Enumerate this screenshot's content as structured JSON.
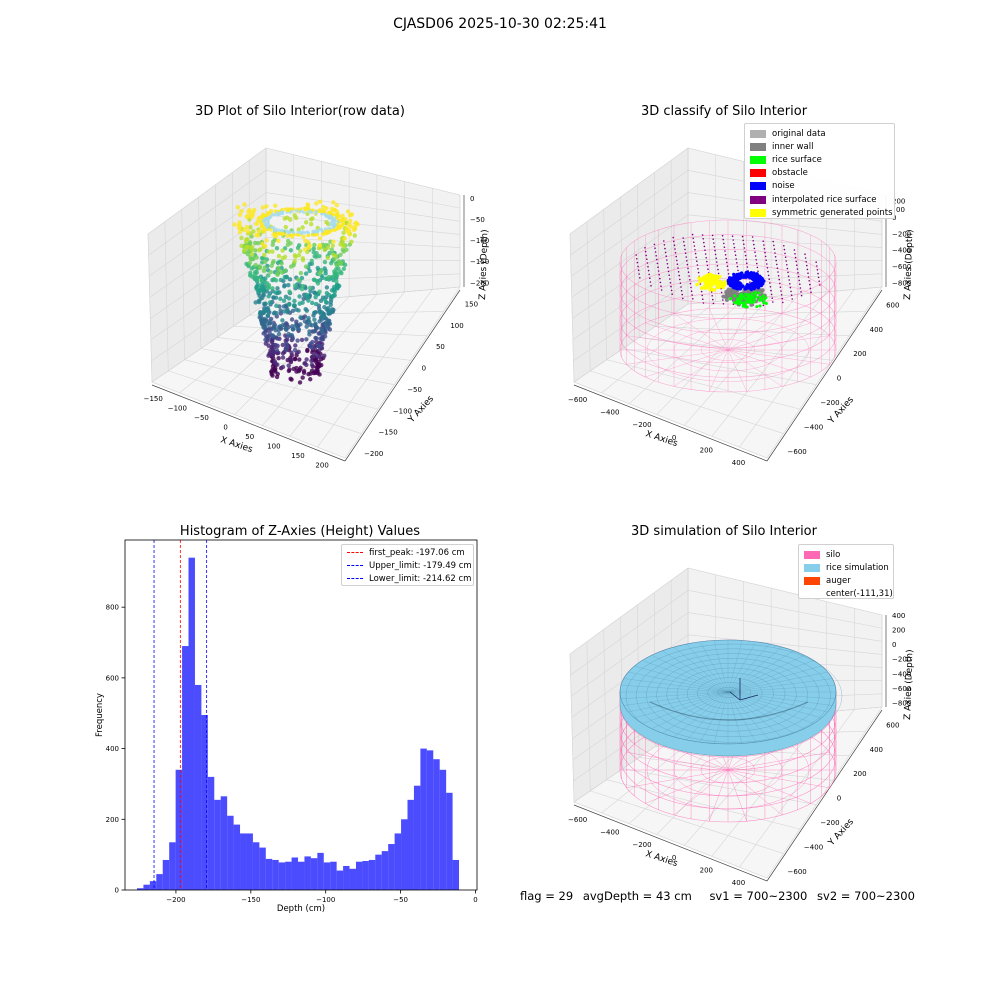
{
  "figure": {
    "suptitle": "CJASD06 2025-10-30 02:25:41"
  },
  "status": {
    "flag": "flag = 29",
    "avg_depth": "avgDepth = 43 cm",
    "sv1": "sv1 = 700~2300",
    "sv2": "sv2 = 700~2300"
  },
  "chart_data": [
    {
      "type": "scatter",
      "title": "3D Plot of Silo Interior(row data)",
      "xlabel": "X Axies",
      "ylabel": "Y Axies",
      "zlabel": "Z Axies (Depth)",
      "x_ticks": [
        "−150",
        "−100",
        "−50",
        "0",
        "50",
        "100",
        "150",
        "200"
      ],
      "y_ticks": [
        "150",
        "100",
        "50",
        "0",
        "−50",
        "−100",
        "−150",
        "−200"
      ],
      "z_ticks": [
        "0",
        "−50",
        "−100",
        "−150",
        "−200"
      ],
      "colormap": "viridis"
    },
    {
      "type": "scatter",
      "title": "3D classify of Silo Interior",
      "xlabel": "X Axies",
      "ylabel": "Y Axies",
      "zlabel": "Z Axies (Depth)",
      "x_ticks": [
        "−600",
        "−400",
        "−200",
        "0",
        "200",
        "400"
      ],
      "y_ticks": [
        "600",
        "400",
        "200",
        "0",
        "−200",
        "−400",
        "−600"
      ],
      "z_ticks": [
        "200",
        "0",
        "−200",
        "−400",
        "−600",
        "−800"
      ],
      "z_ticks_clipped": [
        "00"
      ],
      "legend": [
        {
          "label": "original data",
          "color": "#b0b0b0"
        },
        {
          "label": "inner wall",
          "color": "#808080"
        },
        {
          "label": "rice surface",
          "color": "#00ff00"
        },
        {
          "label": "obstacle",
          "color": "#ff0000"
        },
        {
          "label": "noise",
          "color": "#0000ff"
        },
        {
          "label": "interpolated rice surface",
          "color": "#800080"
        },
        {
          "label": "symmetric generated points",
          "color": "#ffff00"
        }
      ]
    },
    {
      "type": "bar",
      "title": "Histogram of Z-Axies (Height) Values",
      "xlabel": "Depth (cm)",
      "ylabel": "Frequency",
      "xlim": [
        -234,
        1
      ],
      "ylim": [
        0,
        990
      ],
      "x_ticks": [
        {
          "value": -200,
          "label": "−200"
        },
        {
          "value": -150,
          "label": "−150"
        },
        {
          "value": -100,
          "label": "−100"
        },
        {
          "value": -50,
          "label": "−50"
        },
        {
          "value": 0,
          "label": "0"
        }
      ],
      "y_ticks": [
        {
          "value": 0,
          "label": "0"
        },
        {
          "value": 200,
          "label": "200"
        },
        {
          "value": 400,
          "label": "400"
        },
        {
          "value": 600,
          "label": "600"
        },
        {
          "value": 800,
          "label": "800"
        }
      ],
      "bin_start": -226,
      "bin_width": 4.3,
      "bar_color": "#0000ff",
      "values": [
        5,
        15,
        25,
        45,
        85,
        135,
        340,
        690,
        940,
        580,
        495,
        320,
        255,
        265,
        210,
        185,
        160,
        160,
        135,
        120,
        88,
        85,
        78,
        80,
        92,
        80,
        95,
        90,
        105,
        78,
        80,
        55,
        68,
        60,
        80,
        82,
        85,
        100,
        110,
        130,
        160,
        200,
        255,
        295,
        400,
        395,
        370,
        340,
        275,
        85
      ],
      "vlines": [
        {
          "x": -197.06,
          "color": "#ff0000",
          "label": "first_peak: -197.06 cm"
        },
        {
          "x": -179.49,
          "color": "#0000ff",
          "label": "Upper_limit: -179.49 cm"
        },
        {
          "x": -214.62,
          "color": "#0000ff",
          "label": "Lower_limit: -214.62 cm"
        }
      ]
    },
    {
      "type": "area",
      "title": "3D simulation of Silo Interior",
      "xlabel": "X Axies",
      "ylabel": "Y Axies",
      "zlabel": "Z Axies (Depth)",
      "x_ticks": [
        "−600",
        "−400",
        "−200",
        "0",
        "200",
        "400"
      ],
      "y_ticks": [
        "600",
        "400",
        "200",
        "0",
        "−200",
        "−400",
        "−600"
      ],
      "z_ticks": [
        "400",
        "200",
        "0",
        "−200",
        "−400",
        "−600",
        "−800"
      ],
      "legend": [
        {
          "label": "silo",
          "color": "#ff69b4"
        },
        {
          "label": "rice simulation",
          "color": "#87ceeb"
        },
        {
          "label": "auger",
          "color": "#ff4500"
        },
        {
          "label": "center(-111,31)",
          "color": ""
        }
      ]
    }
  ]
}
